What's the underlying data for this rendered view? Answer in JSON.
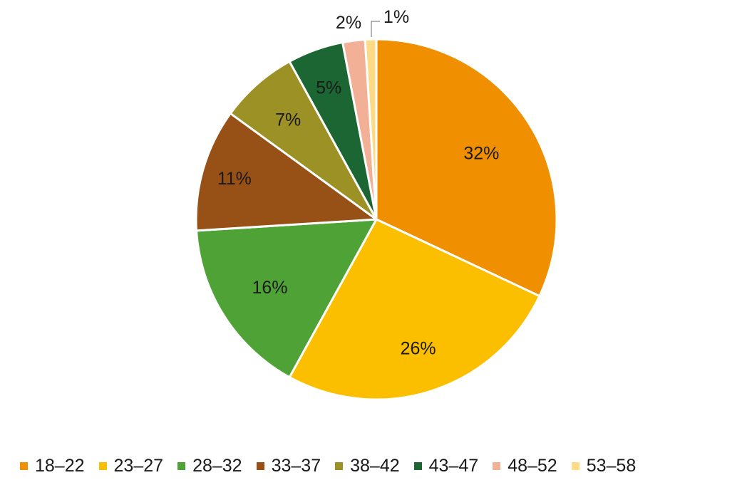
{
  "chart_data": {
    "type": "pie",
    "categories": [
      "18–22",
      "23–27",
      "28–32",
      "33–37",
      "38–42",
      "43–47",
      "48–52",
      "53–58"
    ],
    "values": [
      32,
      26,
      16,
      11,
      7,
      5,
      2,
      1
    ],
    "data_labels": [
      "32%",
      "26%",
      "16%",
      "11%",
      "7%",
      "5%",
      "2%",
      "1%"
    ],
    "colors": [
      "#F08F00",
      "#FBBF00",
      "#4FA236",
      "#975016",
      "#9B9125",
      "#1B6632",
      "#F2B096",
      "#FDDB86"
    ],
    "title": "",
    "legend_position": "bottom",
    "start": "12 o'clock, clockwise"
  }
}
